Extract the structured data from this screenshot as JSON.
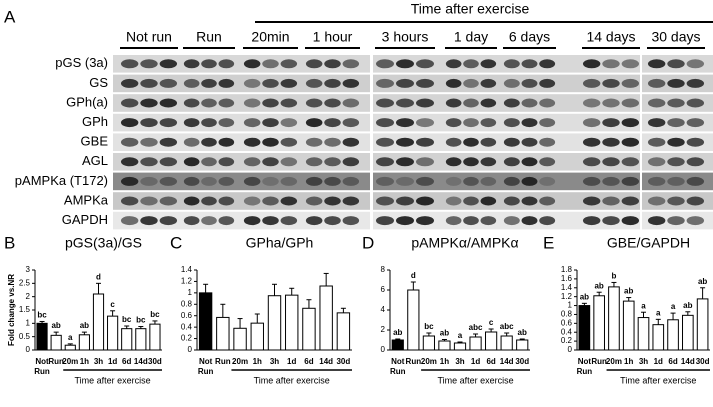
{
  "panel_a": {
    "label": "A",
    "time_label": "Time after exercise",
    "groups": [
      "Not run",
      "Run",
      "20min",
      "1 hour",
      "3 hours",
      "1 day",
      "6 days",
      "14 days",
      "30 days"
    ],
    "rows": [
      "pGS (3a)",
      "GS",
      "GPh(a)",
      "GPh",
      "GBE",
      "AGL",
      "pAMPKa (T172)",
      "AMPKa",
      "GAPDH"
    ]
  },
  "chart_data": [
    {
      "type": "bar",
      "panel": "B",
      "title": "pGS(3a)/GS",
      "y_label": "Fold change vs.NR",
      "x_label": "Time after exercise",
      "categories": [
        "Not Run",
        "Run",
        "20m",
        "1h",
        "3h",
        "1d",
        "6d",
        "14d",
        "30d"
      ],
      "values": [
        1.0,
        0.55,
        0.18,
        0.57,
        2.1,
        1.27,
        0.8,
        0.8,
        0.97
      ],
      "errors": [
        0.07,
        0.12,
        0.05,
        0.1,
        0.4,
        0.2,
        0.1,
        0.08,
        0.12
      ],
      "annotations": [
        "bc",
        "ab",
        "a",
        "ab",
        "d",
        "c",
        "bc",
        "bc",
        "bc"
      ],
      "colors": [
        "#000000",
        "#ffffff",
        "#ffffff",
        "#ffffff",
        "#ffffff",
        "#ffffff",
        "#ffffff",
        "#ffffff",
        "#ffffff"
      ],
      "ylim": [
        0,
        3
      ],
      "yticks": [
        0,
        0.5,
        1,
        1.5,
        2,
        2.5,
        3
      ]
    },
    {
      "type": "bar",
      "panel": "C",
      "title": "GPha/GPh",
      "x_label": "Time after exercise",
      "categories": [
        "Not Run",
        "Run",
        "20m",
        "1h",
        "3h",
        "1d",
        "6d",
        "14d",
        "30d"
      ],
      "values": [
        1.0,
        0.57,
        0.38,
        0.47,
        0.95,
        0.96,
        0.73,
        1.12,
        0.65
      ],
      "errors": [
        0.15,
        0.23,
        0.17,
        0.16,
        0.2,
        0.12,
        0.15,
        0.22,
        0.08
      ],
      "colors": [
        "#000000",
        "#ffffff",
        "#ffffff",
        "#ffffff",
        "#ffffff",
        "#ffffff",
        "#ffffff",
        "#ffffff",
        "#ffffff"
      ],
      "ylim": [
        0,
        1.4
      ],
      "yticks": [
        0,
        0.2,
        0.4,
        0.6,
        0.8,
        1,
        1.2,
        1.4
      ]
    },
    {
      "type": "bar",
      "panel": "D",
      "title": "pAMPKα/AMPKα",
      "x_label": "Time after exercise",
      "categories": [
        "Not Run",
        "Run",
        "20m",
        "1h",
        "3h",
        "1d",
        "6d",
        "14d",
        "30d"
      ],
      "values": [
        1.0,
        6.0,
        1.4,
        0.9,
        0.7,
        1.3,
        1.8,
        1.4,
        1.0
      ],
      "errors": [
        0.1,
        0.8,
        0.3,
        0.15,
        0.1,
        0.3,
        0.3,
        0.3,
        0.1
      ],
      "annotations": [
        "ab",
        "d",
        "bc",
        "ab",
        "a",
        "abc",
        "c",
        "abc",
        "ab"
      ],
      "colors": [
        "#000000",
        "#ffffff",
        "#ffffff",
        "#ffffff",
        "#ffffff",
        "#ffffff",
        "#ffffff",
        "#ffffff",
        "#ffffff"
      ],
      "ylim": [
        0,
        8
      ],
      "yticks": [
        0,
        2,
        4,
        6,
        8
      ]
    },
    {
      "type": "bar",
      "panel": "E",
      "title": "GBE/GAPDH",
      "x_label": "Time after exercise",
      "categories": [
        "Not Run",
        "Run",
        "20m",
        "1h",
        "3h",
        "1d",
        "6d",
        "14d",
        "30d"
      ],
      "values": [
        1.0,
        1.22,
        1.42,
        1.1,
        0.73,
        0.57,
        0.68,
        0.78,
        1.15
      ],
      "errors": [
        0.05,
        0.08,
        0.1,
        0.08,
        0.12,
        0.12,
        0.15,
        0.08,
        0.25
      ],
      "annotations": [
        "ab",
        "ab",
        "b",
        "ab",
        "a",
        "a",
        "a",
        "ab",
        "ab"
      ],
      "colors": [
        "#000000",
        "#ffffff",
        "#ffffff",
        "#ffffff",
        "#ffffff",
        "#ffffff",
        "#ffffff",
        "#ffffff",
        "#ffffff"
      ],
      "ylim": [
        0,
        1.8
      ],
      "yticks": [
        0,
        0.2,
        0.4,
        0.6,
        0.8,
        1,
        1.2,
        1.4,
        1.6,
        1.8
      ]
    }
  ]
}
